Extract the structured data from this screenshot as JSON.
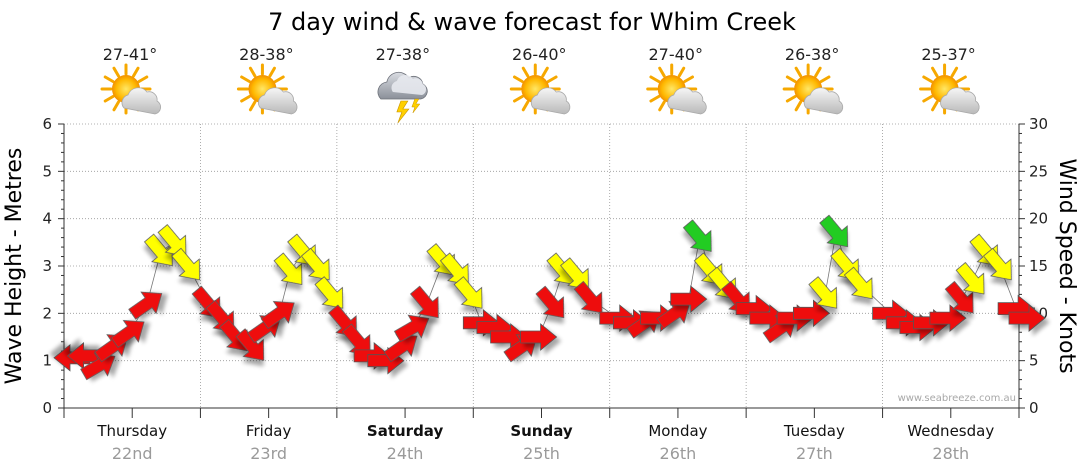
{
  "chart_data": {
    "type": "scatter",
    "title": "7 day wind & wave forecast for Whim Creek",
    "ylabel": "Wave Height - Metres",
    "y2label": "Wind Speed - Knots",
    "ylim": [
      0,
      6
    ],
    "y2lim": [
      0,
      30
    ],
    "yticks": [
      "0",
      "1",
      "2",
      "3",
      "4",
      "5",
      "6"
    ],
    "y2ticks": [
      "0",
      "5",
      "10",
      "15",
      "20",
      "25",
      "30"
    ],
    "grid": true,
    "watermark": "www.seabreeze.com.au",
    "colors": {
      "calm": "#ee1111",
      "moderate": "#ffff00",
      "fresh": "#22cc22",
      "outline": "#555555",
      "grid": "#999999"
    },
    "days": [
      {
        "name": "Thursday",
        "date": "22nd",
        "temp": "27-41°",
        "icon": "partly-cloudy-sun-icon",
        "bold": false
      },
      {
        "name": "Friday",
        "date": "23rd",
        "temp": "28-38°",
        "icon": "partly-cloudy-sun-icon",
        "bold": false
      },
      {
        "name": "Saturday",
        "date": "24th",
        "temp": "27-38°",
        "icon": "thunderstorm-cloud-icon",
        "bold": true
      },
      {
        "name": "Sunday",
        "date": "25th",
        "temp": "26-40°",
        "icon": "partly-cloudy-sun-icon",
        "bold": true
      },
      {
        "name": "Monday",
        "date": "26th",
        "temp": "27-40°",
        "icon": "partly-cloudy-sun-icon",
        "bold": false
      },
      {
        "name": "Tuesday",
        "date": "27th",
        "temp": "26-38°",
        "icon": "partly-cloudy-sun-icon",
        "bold": false
      },
      {
        "name": "Wednesday",
        "date": "28th",
        "temp": "25-37°",
        "icon": "partly-cloudy-sun-icon",
        "bold": false
      }
    ],
    "wind_knots": [
      {
        "d": 0.0,
        "v": 5.3,
        "dir": "W"
      },
      {
        "d": 0.1,
        "v": 5.5,
        "dir": "W"
      },
      {
        "d": 0.2,
        "v": 4.5,
        "dir": "NW"
      },
      {
        "d": 0.3,
        "v": 6.5,
        "dir": "SW"
      },
      {
        "d": 0.42,
        "v": 8.0,
        "dir": "SW"
      },
      {
        "d": 0.55,
        "v": 11.0,
        "dir": "SW"
      },
      {
        "d": 0.65,
        "v": 16.5,
        "dir": "NE"
      },
      {
        "d": 0.75,
        "v": 17.5,
        "dir": "NE"
      },
      {
        "d": 0.85,
        "v": 15.0,
        "dir": "NE"
      },
      {
        "d": 1.0,
        "v": 11.0,
        "dir": "NE"
      },
      {
        "d": 1.1,
        "v": 9.5,
        "dir": "NE"
      },
      {
        "d": 1.2,
        "v": 7.5,
        "dir": "NE"
      },
      {
        "d": 1.32,
        "v": 6.5,
        "dir": "NE"
      },
      {
        "d": 1.42,
        "v": 8.5,
        "dir": "SW"
      },
      {
        "d": 1.52,
        "v": 10.0,
        "dir": "SW"
      },
      {
        "d": 1.6,
        "v": 14.5,
        "dir": "NE"
      },
      {
        "d": 1.7,
        "v": 16.5,
        "dir": "NE"
      },
      {
        "d": 1.8,
        "v": 15.0,
        "dir": "NE"
      },
      {
        "d": 1.9,
        "v": 12.0,
        "dir": "NE"
      },
      {
        "d": 2.0,
        "v": 9.0,
        "dir": "NE"
      },
      {
        "d": 2.1,
        "v": 7.0,
        "dir": "NE"
      },
      {
        "d": 2.2,
        "v": 5.5,
        "dir": "E"
      },
      {
        "d": 2.3,
        "v": 5.0,
        "dir": "E"
      },
      {
        "d": 2.42,
        "v": 6.5,
        "dir": "SW"
      },
      {
        "d": 2.5,
        "v": 8.5,
        "dir": "NW"
      },
      {
        "d": 2.6,
        "v": 11.0,
        "dir": "NE"
      },
      {
        "d": 2.72,
        "v": 15.5,
        "dir": "NE"
      },
      {
        "d": 2.82,
        "v": 14.5,
        "dir": "NE"
      },
      {
        "d": 2.92,
        "v": 12.0,
        "dir": "NE"
      },
      {
        "d": 3.0,
        "v": 9.0,
        "dir": "E"
      },
      {
        "d": 3.1,
        "v": 8.5,
        "dir": "E"
      },
      {
        "d": 3.2,
        "v": 7.5,
        "dir": "E"
      },
      {
        "d": 3.3,
        "v": 6.5,
        "dir": "SW"
      },
      {
        "d": 3.42,
        "v": 7.5,
        "dir": "E"
      },
      {
        "d": 3.52,
        "v": 11.0,
        "dir": "NE"
      },
      {
        "d": 3.6,
        "v": 14.5,
        "dir": "NE"
      },
      {
        "d": 3.7,
        "v": 14.0,
        "dir": "NE"
      },
      {
        "d": 3.8,
        "v": 11.5,
        "dir": "NE"
      },
      {
        "d": 4.0,
        "v": 9.5,
        "dir": "E"
      },
      {
        "d": 4.1,
        "v": 9.0,
        "dir": "E"
      },
      {
        "d": 4.2,
        "v": 9.0,
        "dir": "SW"
      },
      {
        "d": 4.3,
        "v": 9.5,
        "dir": "E"
      },
      {
        "d": 4.42,
        "v": 10.0,
        "dir": "SW"
      },
      {
        "d": 4.52,
        "v": 11.5,
        "dir": "E"
      },
      {
        "d": 4.6,
        "v": 18.0,
        "dir": "NE"
      },
      {
        "d": 4.68,
        "v": 14.5,
        "dir": "NE"
      },
      {
        "d": 4.78,
        "v": 13.0,
        "dir": "NE"
      },
      {
        "d": 4.88,
        "v": 11.5,
        "dir": "NE"
      },
      {
        "d": 5.0,
        "v": 10.5,
        "dir": "E"
      },
      {
        "d": 5.1,
        "v": 9.5,
        "dir": "E"
      },
      {
        "d": 5.2,
        "v": 8.5,
        "dir": "SW"
      },
      {
        "d": 5.3,
        "v": 9.5,
        "dir": "E"
      },
      {
        "d": 5.42,
        "v": 10.0,
        "dir": "E"
      },
      {
        "d": 5.52,
        "v": 12.0,
        "dir": "NE"
      },
      {
        "d": 5.6,
        "v": 18.5,
        "dir": "NE"
      },
      {
        "d": 5.68,
        "v": 15.0,
        "dir": "NE"
      },
      {
        "d": 5.78,
        "v": 13.0,
        "dir": "NE"
      },
      {
        "d": 6.0,
        "v": 10.0,
        "dir": "E"
      },
      {
        "d": 6.1,
        "v": 9.0,
        "dir": "E"
      },
      {
        "d": 6.2,
        "v": 8.5,
        "dir": "E"
      },
      {
        "d": 6.3,
        "v": 9.0,
        "dir": "E"
      },
      {
        "d": 6.42,
        "v": 9.5,
        "dir": "E"
      },
      {
        "d": 6.52,
        "v": 11.5,
        "dir": "NE"
      },
      {
        "d": 6.6,
        "v": 13.5,
        "dir": "NE"
      },
      {
        "d": 6.7,
        "v": 16.5,
        "dir": "NE"
      },
      {
        "d": 6.8,
        "v": 15.0,
        "dir": "NE"
      },
      {
        "d": 6.92,
        "v": 10.5,
        "dir": "E"
      },
      {
        "d": 7.0,
        "v": 9.5,
        "dir": "E"
      }
    ]
  }
}
